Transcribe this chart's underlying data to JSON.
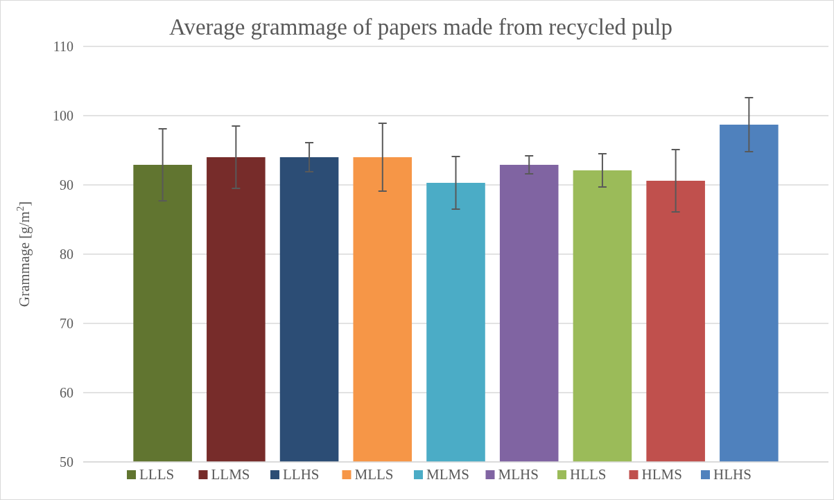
{
  "chart_data": {
    "type": "bar",
    "title": "Average grammage of papers made from recycled pulp",
    "ylabel": "Grammage [g/m$^{2}$]",
    "categories": [
      null
    ],
    "ylim": [
      50,
      110
    ],
    "yticks": [
      50,
      60,
      70,
      80,
      90,
      100,
      110
    ],
    "grid": "y",
    "legend": "bottom left",
    "series": [
      {
        "name": "LLLS",
        "color": "#617530",
        "values": [
          92.9
        ],
        "errors": [
          5.2
        ]
      },
      {
        "name": "LLMS",
        "color": "#772c2a",
        "values": [
          94.0
        ],
        "errors": [
          4.5
        ]
      },
      {
        "name": "LLHS",
        "color": "#2c4d75",
        "values": [
          94.0
        ],
        "errors": [
          2.1
        ]
      },
      {
        "name": "MLLS",
        "color": "#f69647",
        "values": [
          94.0
        ],
        "errors": [
          4.9
        ]
      },
      {
        "name": "MLMS",
        "color": "#4bacc6",
        "values": [
          90.3
        ],
        "errors": [
          3.8
        ]
      },
      {
        "name": "MLHS",
        "color": "#8064a2",
        "values": [
          92.9
        ],
        "errors": [
          1.3
        ]
      },
      {
        "name": "HLLS",
        "color": "#9bbb59",
        "values": [
          92.1
        ],
        "errors": [
          2.4
        ]
      },
      {
        "name": "HLMS",
        "color": "#c0504d",
        "values": [
          90.6
        ],
        "errors": [
          4.5
        ]
      },
      {
        "name": "HLHS",
        "color": "#4f81bd",
        "values": [
          98.7
        ],
        "errors": [
          3.9
        ]
      }
    ]
  }
}
